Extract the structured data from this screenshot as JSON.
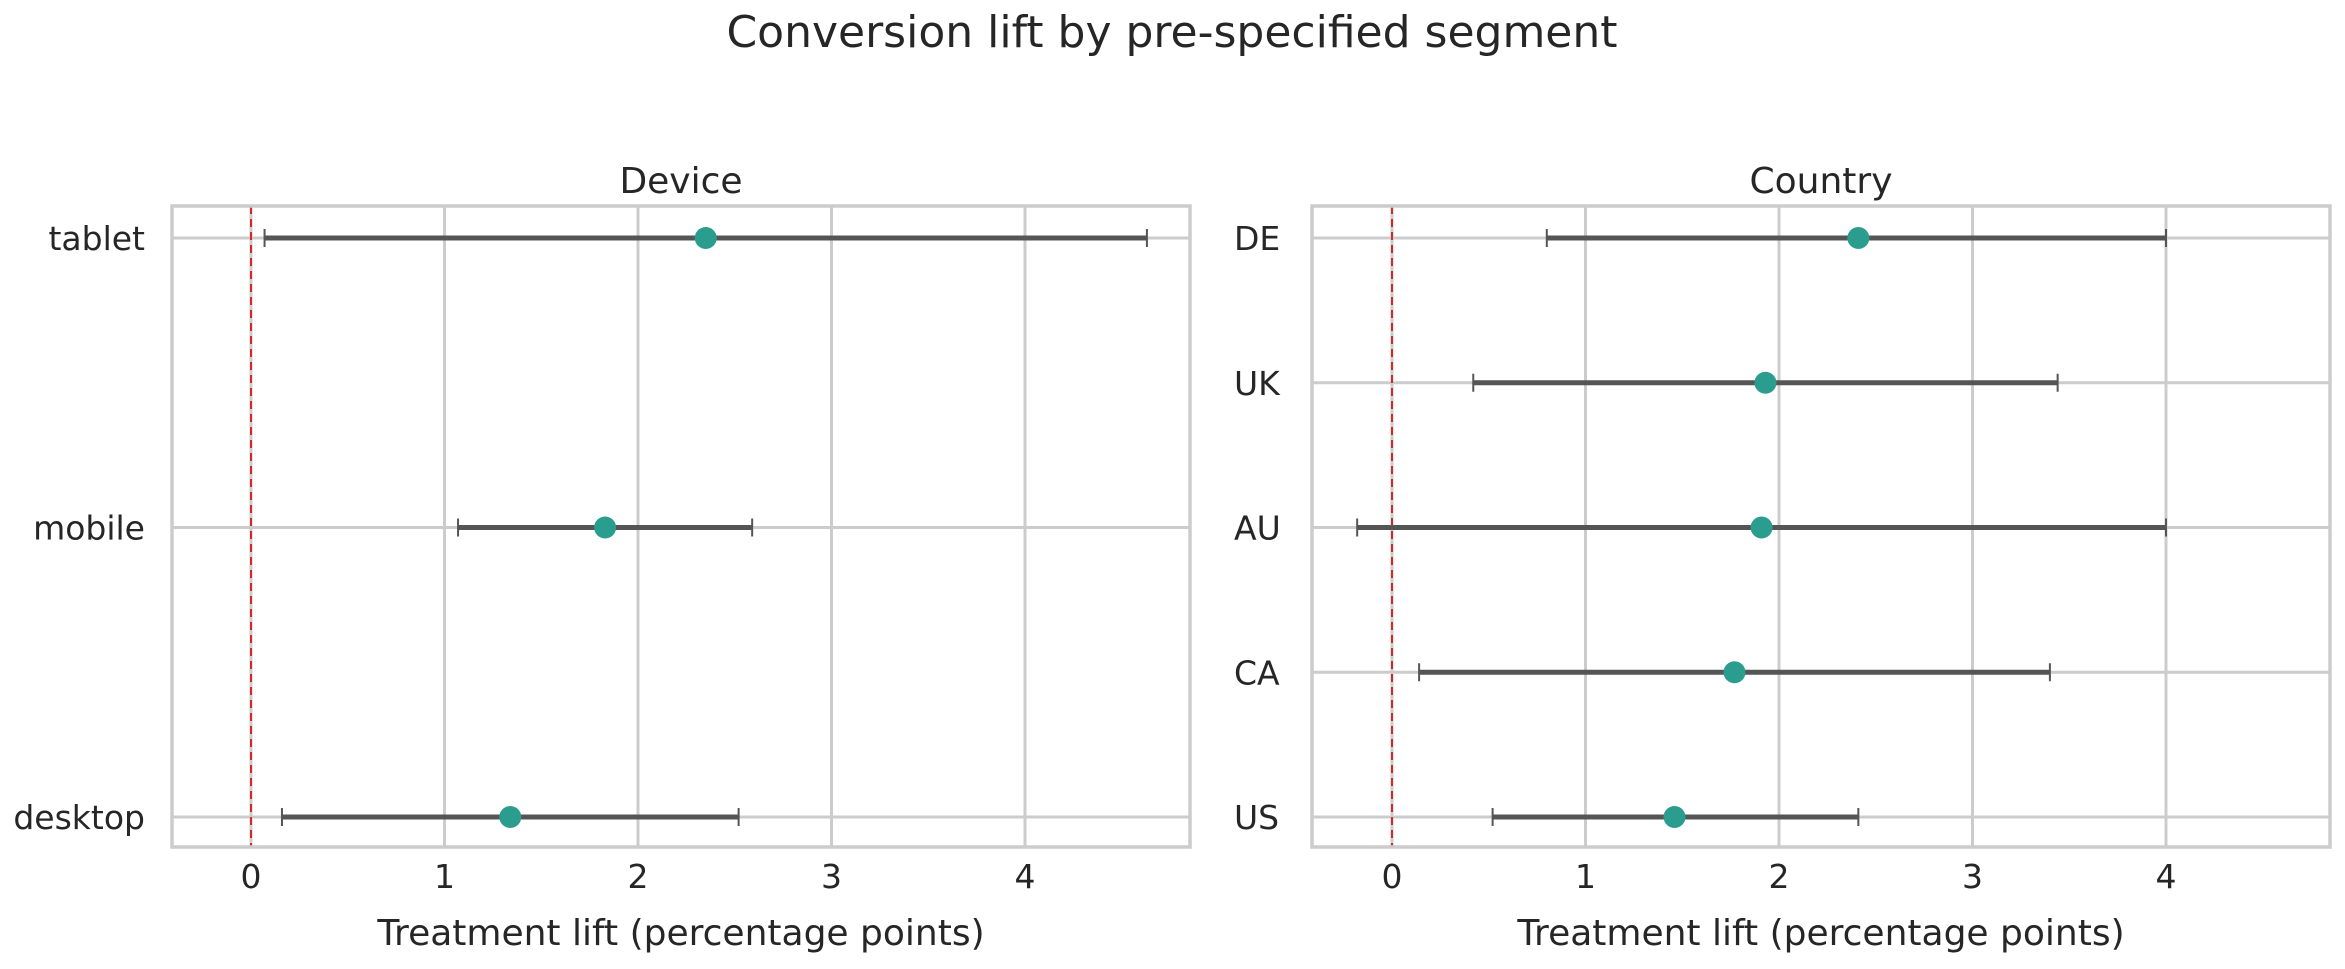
{
  "title": "Conversion lift by pre-specified segment",
  "colors": {
    "point": "#2a9d8f",
    "interval": "#555555",
    "reference_line": "#d62728",
    "grid": "#cccccc"
  },
  "chart_data": [
    {
      "type": "scatter",
      "title": "Device",
      "xlabel": "Treatment lift (percentage points)",
      "ylabel": "",
      "xlim": [
        -0.42,
        4.85
      ],
      "xticks": [
        0,
        1,
        2,
        3,
        4
      ],
      "reference_line_x": 0,
      "grid": true,
      "categories": [
        "tablet",
        "mobile",
        "desktop"
      ],
      "points": [
        {
          "label": "tablet",
          "estimate": 2.35,
          "ci_low": 0.07,
          "ci_high": 4.63
        },
        {
          "label": "mobile",
          "estimate": 1.83,
          "ci_low": 1.07,
          "ci_high": 2.59
        },
        {
          "label": "desktop",
          "estimate": 1.34,
          "ci_low": 0.16,
          "ci_high": 2.52
        }
      ]
    },
    {
      "type": "scatter",
      "title": "Country",
      "xlabel": "Treatment lift (percentage points)",
      "ylabel": "",
      "xlim": [
        -0.42,
        4.85
      ],
      "xticks": [
        0,
        1,
        2,
        3,
        4
      ],
      "reference_line_x": 0,
      "grid": true,
      "categories": [
        "DE",
        "UK",
        "AU",
        "CA",
        "US"
      ],
      "points": [
        {
          "label": "DE",
          "estimate": 2.41,
          "ci_low": 0.8,
          "ci_high": 4.0
        },
        {
          "label": "UK",
          "estimate": 1.93,
          "ci_low": 0.42,
          "ci_high": 3.44
        },
        {
          "label": "AU",
          "estimate": 1.91,
          "ci_low": -0.18,
          "ci_high": 4.0
        },
        {
          "label": "CA",
          "estimate": 1.77,
          "ci_low": 0.14,
          "ci_high": 3.4
        },
        {
          "label": "US",
          "estimate": 1.46,
          "ci_low": 0.52,
          "ci_high": 2.41
        }
      ]
    }
  ]
}
